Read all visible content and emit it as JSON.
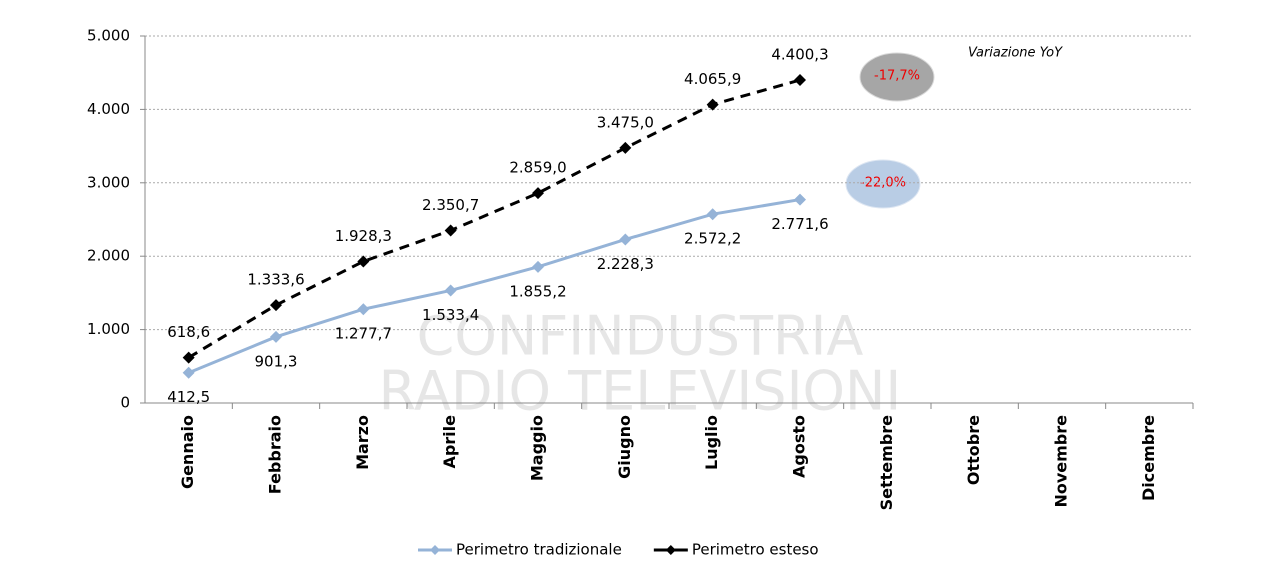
{
  "chart_data": {
    "type": "line",
    "categories": [
      "Gennaio",
      "Febbraio",
      "Marzo",
      "Aprile",
      "Maggio",
      "Giugno",
      "Luglio",
      "Agosto",
      "Settembre",
      "Ottobre",
      "Novembre",
      "Dicembre"
    ],
    "series": [
      {
        "name": "Perimetro tradizionale",
        "color": "#95b3d7",
        "line_style": "solid",
        "values": [
          412.5,
          901.3,
          1277.7,
          1533.4,
          1855.2,
          2228.3,
          2572.2,
          2771.6,
          null,
          null,
          null,
          null
        ],
        "value_labels": [
          "412,5",
          "901,3",
          "1.277,7",
          "1.533,4",
          "1.855,2",
          "2.228,3",
          "2.572,2",
          "2.771,6",
          null,
          null,
          null,
          null
        ]
      },
      {
        "name": "Perimetro esteso",
        "color": "#000000",
        "line_style": "dashed",
        "values": [
          618.6,
          1333.6,
          1928.3,
          2350.7,
          2859.0,
          3475.0,
          4065.9,
          4400.3,
          null,
          null,
          null,
          null
        ],
        "value_labels": [
          "618,6",
          "1.333,6",
          "1.928,3",
          "2.350,7",
          "2.859,0",
          "3.475,0",
          "4.065,9",
          "4.400,3",
          null,
          null,
          null,
          null
        ]
      }
    ],
    "ylim": [
      0,
      5000
    ],
    "yticks": [
      0,
      {
        "value": 1000,
        "label": "1.000"
      },
      {
        "value": 2000,
        "label": "2.000"
      },
      {
        "value": 3000,
        "label": "3.000"
      },
      {
        "value": 4000,
        "label": "4.000"
      },
      {
        "value": 5000,
        "label": "5.000"
      }
    ],
    "grid": true,
    "legend": "bottom",
    "annotations": [
      "Variazione YoY",
      "-17,7%",
      "-22,0%"
    ],
    "watermark": [
      "CONFINDUSTRIA",
      "RADIO TELEVISIONI"
    ]
  }
}
